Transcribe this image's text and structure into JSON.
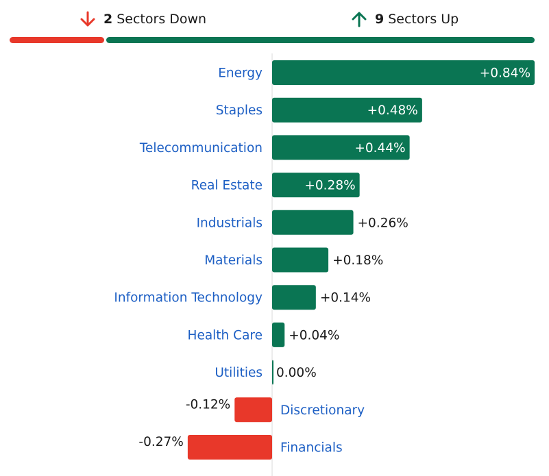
{
  "summary": {
    "down": {
      "count": "2",
      "label": "Sectors Down",
      "icon": "arrow-down-icon",
      "color": "#e8382a"
    },
    "up": {
      "count": "9",
      "label": "Sectors Up",
      "icon": "arrow-up-icon",
      "color": "#0a7553"
    }
  },
  "colors": {
    "positive": "#0a7553",
    "negative": "#e8382a",
    "category_text": "#1d5fc4",
    "value_text": "#1a1a1a"
  },
  "chart_data": {
    "type": "bar",
    "orientation": "horizontal",
    "categories": [
      "Energy",
      "Staples",
      "Telecommunication",
      "Real Estate",
      "Industrials",
      "Materials",
      "Information Technology",
      "Health Care",
      "Utilities",
      "Discretionary",
      "Financials"
    ],
    "values": [
      0.84,
      0.48,
      0.44,
      0.28,
      0.26,
      0.18,
      0.14,
      0.04,
      0.0,
      -0.12,
      -0.27
    ],
    "labels": [
      "+0.84%",
      "+0.48%",
      "+0.44%",
      "+0.28%",
      "+0.26%",
      "+0.18%",
      "+0.14%",
      "+0.04%",
      "0.00%",
      "-0.12%",
      "-0.27%"
    ],
    "unit": "%"
  }
}
